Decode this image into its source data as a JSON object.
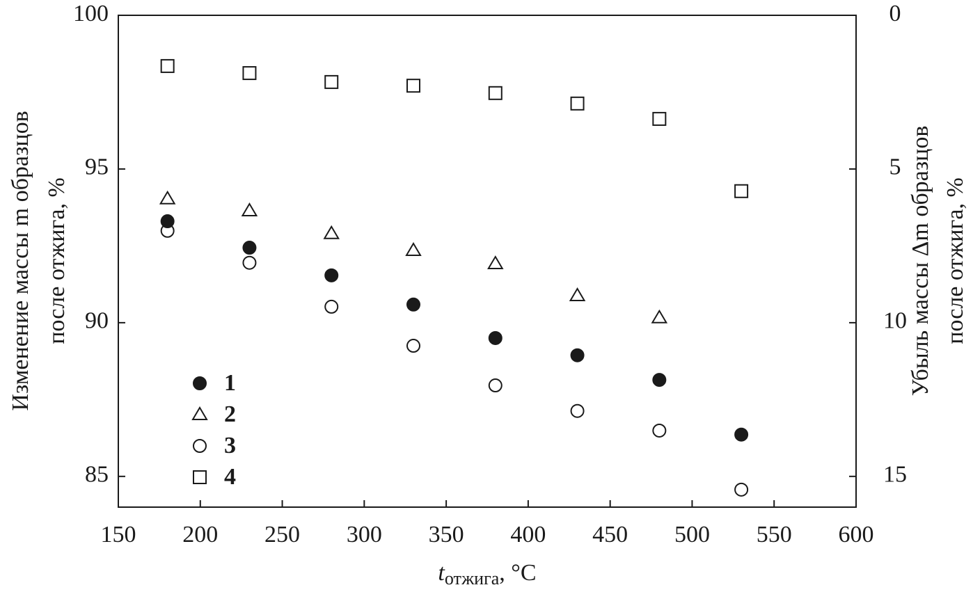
{
  "chart_data": {
    "type": "scatter",
    "xlabel": {
      "symbol": "t",
      "subscript": "отжига",
      "unit": ", °C"
    },
    "ylabel": [
      "Изменение массы m образцов",
      "после отжига, %"
    ],
    "y2label": [
      "Убыль массы Δm образцов",
      "после отжига, %"
    ],
    "x": [
      180,
      230,
      280,
      330,
      380,
      430,
      480,
      530
    ],
    "series": [
      {
        "name": "1",
        "marker": "circle-filled",
        "color": "#1a1a1a",
        "values": [
          93.3,
          92.44,
          91.54,
          90.59,
          89.5,
          88.94,
          88.14,
          86.36
        ]
      },
      {
        "name": "2",
        "marker": "triangle-open",
        "color": "#1a1a1a",
        "values": [
          94.03,
          93.64,
          92.9,
          92.35,
          91.92,
          90.88,
          90.16,
          null
        ]
      },
      {
        "name": "3",
        "marker": "circle-open",
        "color": "#1a1a1a",
        "values": [
          92.99,
          91.95,
          90.52,
          89.25,
          87.96,
          87.13,
          86.49,
          84.57
        ]
      },
      {
        "name": "4",
        "marker": "square-open",
        "color": "#1a1a1a",
        "values": [
          98.35,
          98.12,
          97.83,
          97.71,
          97.47,
          97.13,
          96.63,
          94.28
        ]
      }
    ],
    "xlim": [
      150,
      600
    ],
    "xticks": [
      150,
      200,
      250,
      300,
      350,
      400,
      450,
      500,
      550,
      600
    ],
    "ylim": [
      84,
      100
    ],
    "yticks": [
      85,
      90,
      95,
      100
    ],
    "y2lim": [
      16,
      0
    ],
    "y2ticks": [
      0,
      5,
      10,
      15
    ],
    "grid": false
  }
}
